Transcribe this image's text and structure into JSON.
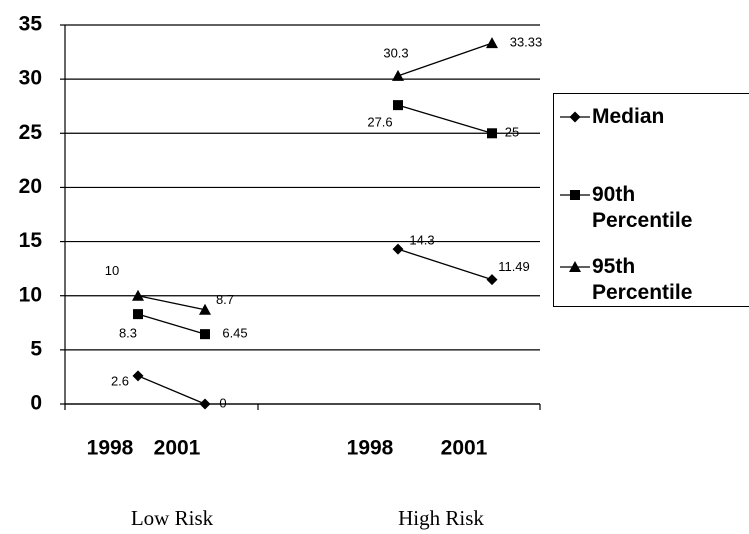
{
  "chart_data": {
    "type": "line",
    "categories": [
      "1998",
      "2001",
      null,
      "1998",
      "2001"
    ],
    "group_labels": [
      "Low Risk",
      "High Risk"
    ],
    "series": [
      {
        "name": "Median",
        "color": "#000000",
        "values": [
          2.6,
          0,
          null,
          14.3,
          11.49
        ]
      },
      {
        "name": "90th Percentile",
        "color": "#000000",
        "values": [
          8.3,
          6.45,
          null,
          27.6,
          25
        ]
      },
      {
        "name": "95th Percentile",
        "color": "#000000",
        "values": [
          10,
          8.7,
          null,
          30.3,
          33.33
        ]
      }
    ],
    "ylim": [
      0,
      35
    ],
    "yticks": [
      0,
      5,
      10,
      15,
      20,
      25,
      30,
      35
    ],
    "grid": true,
    "legend": "right"
  }
}
